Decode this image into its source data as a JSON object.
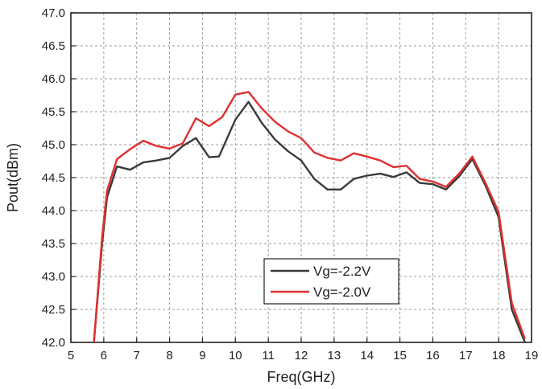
{
  "chart_data": {
    "type": "line",
    "xlabel": "Freq(GHz)",
    "ylabel": "Pout(dBm)",
    "xlim": [
      5,
      19
    ],
    "ylim": [
      42.0,
      47.0
    ],
    "xticks": [
      "5",
      "6",
      "7",
      "8",
      "9",
      "10",
      "11",
      "12",
      "13",
      "14",
      "15",
      "16",
      "17",
      "18",
      "19"
    ],
    "yticks": [
      "42.0",
      "42.5",
      "43.0",
      "43.5",
      "44.0",
      "44.5",
      "45.0",
      "45.5",
      "46.0",
      "46.5",
      "47.0"
    ],
    "grid": true,
    "legend_position": "bottom-center",
    "series": [
      {
        "name": "Vg=-2.2V",
        "color": "#3a3a3a",
        "x": [
          5.7,
          5.95,
          6.1,
          6.4,
          6.8,
          7.2,
          7.6,
          8.0,
          8.4,
          8.8,
          9.2,
          9.5,
          10.0,
          10.4,
          10.8,
          11.2,
          11.6,
          12.0,
          12.4,
          12.8,
          13.2,
          13.6,
          14.0,
          14.4,
          14.8,
          15.2,
          15.6,
          16.0,
          16.4,
          16.8,
          17.2,
          17.6,
          18.0,
          18.4,
          18.8
        ],
        "y": [
          42.0,
          43.5,
          44.2,
          44.67,
          44.62,
          44.73,
          44.76,
          44.8,
          44.98,
          45.1,
          44.81,
          44.82,
          45.38,
          45.65,
          45.33,
          45.08,
          44.9,
          44.76,
          44.48,
          44.32,
          44.32,
          44.48,
          44.53,
          44.56,
          44.51,
          44.58,
          44.42,
          44.4,
          44.32,
          44.52,
          44.78,
          44.38,
          43.9,
          42.5,
          42.0
        ]
      },
      {
        "name": "Vg=-2.0V",
        "color": "#e03030",
        "x": [
          5.7,
          5.95,
          6.1,
          6.4,
          6.8,
          7.2,
          7.6,
          8.0,
          8.4,
          8.8,
          9.2,
          9.6,
          10.0,
          10.4,
          10.8,
          11.2,
          11.6,
          12.0,
          12.4,
          12.8,
          13.2,
          13.6,
          14.0,
          14.4,
          14.8,
          15.2,
          15.6,
          16.0,
          16.4,
          16.8,
          17.2,
          17.6,
          18.0,
          18.4,
          18.8
        ],
        "y": [
          42.0,
          43.6,
          44.3,
          44.78,
          44.93,
          45.06,
          44.98,
          44.94,
          45.02,
          45.4,
          45.28,
          45.42,
          45.76,
          45.8,
          45.55,
          45.35,
          45.2,
          45.1,
          44.88,
          44.8,
          44.76,
          44.87,
          44.82,
          44.76,
          44.66,
          44.68,
          44.48,
          44.44,
          44.36,
          44.56,
          44.82,
          44.42,
          43.98,
          42.6,
          42.05
        ]
      }
    ]
  }
}
